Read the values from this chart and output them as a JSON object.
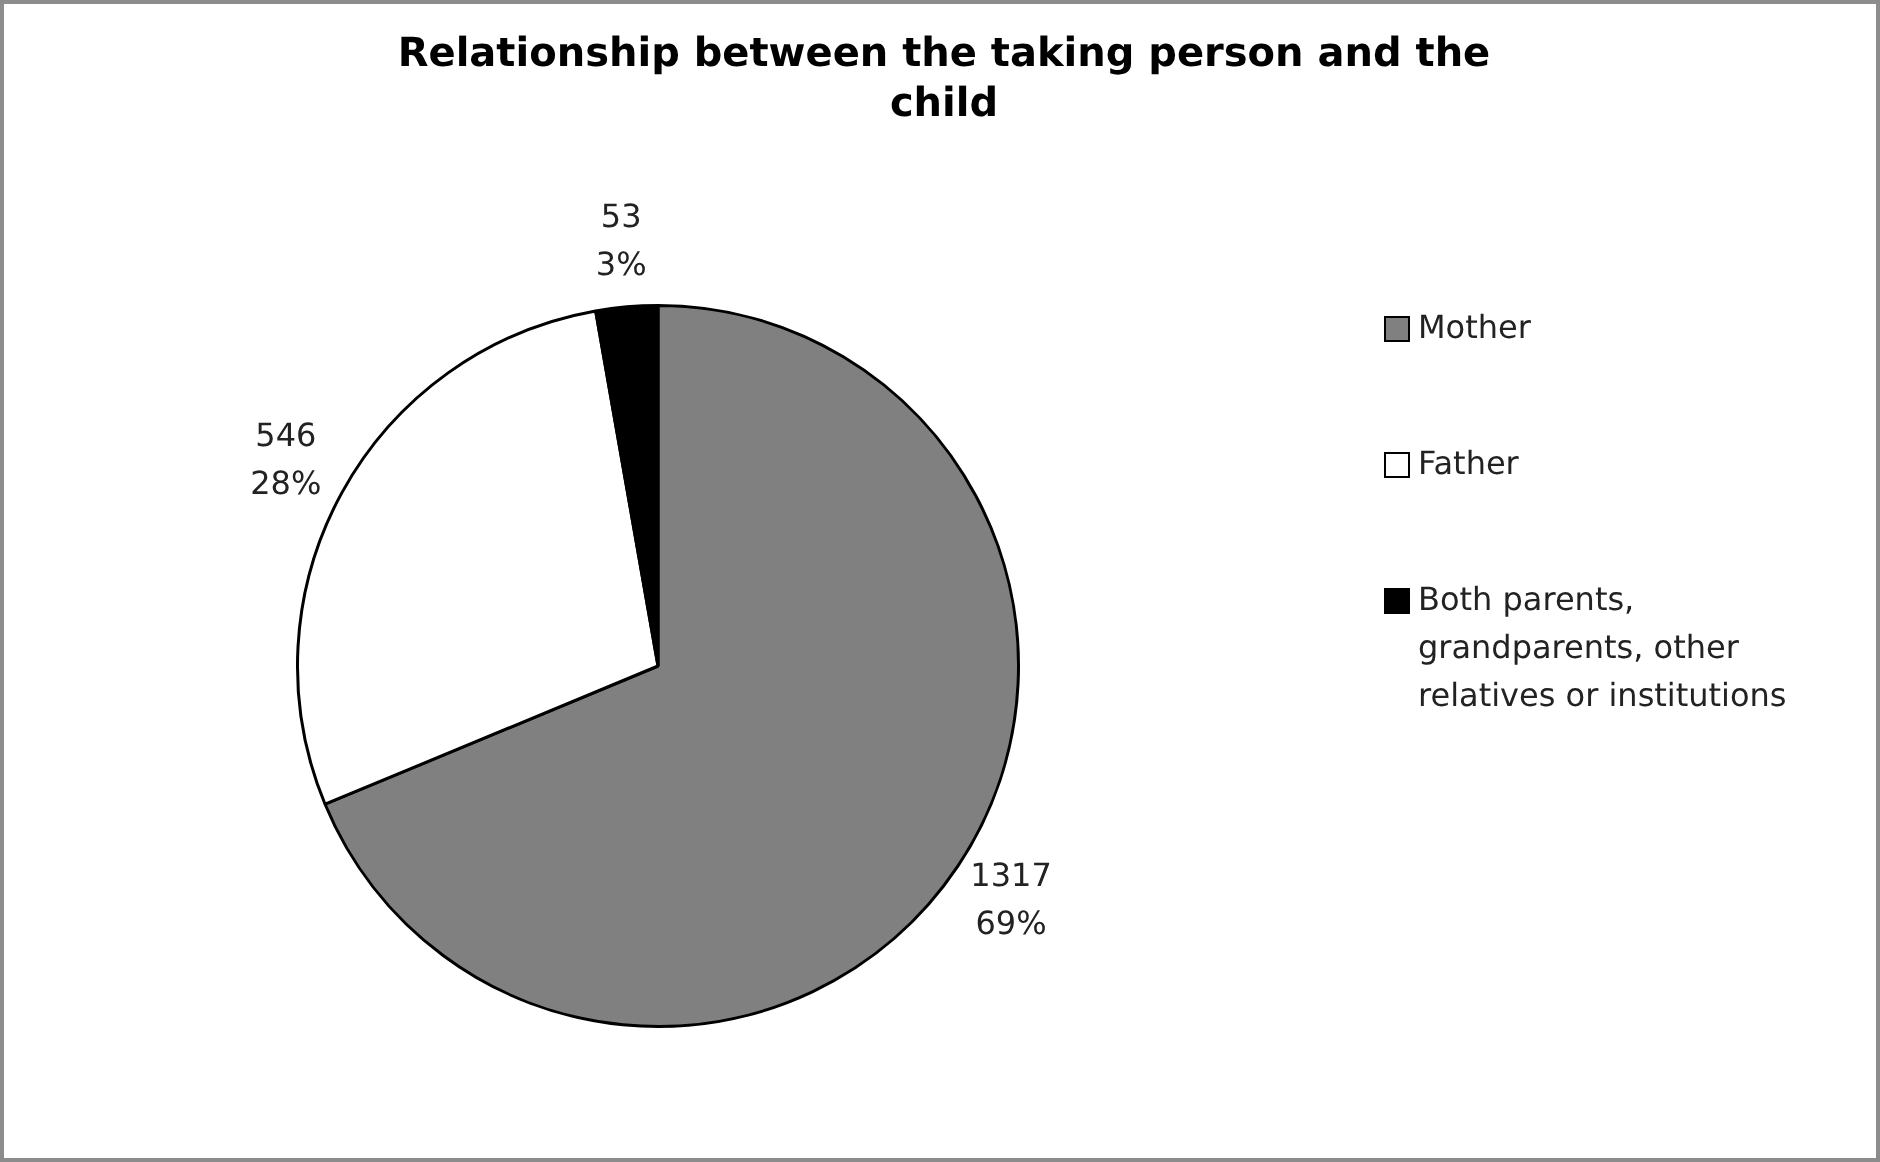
{
  "chart_data": {
    "type": "pie",
    "title": "Relationship between the taking person and the child",
    "categories": [
      "Mother",
      "Father",
      "Both parents, grandparents, other relatives or institutions"
    ],
    "values": [
      1317,
      546,
      53
    ],
    "colors": [
      "#808080",
      "#ffffff",
      "#000000"
    ],
    "value_labels": [
      "1317\n69%",
      "546\n28%",
      "53\n3%"
    ],
    "legend": "right"
  }
}
